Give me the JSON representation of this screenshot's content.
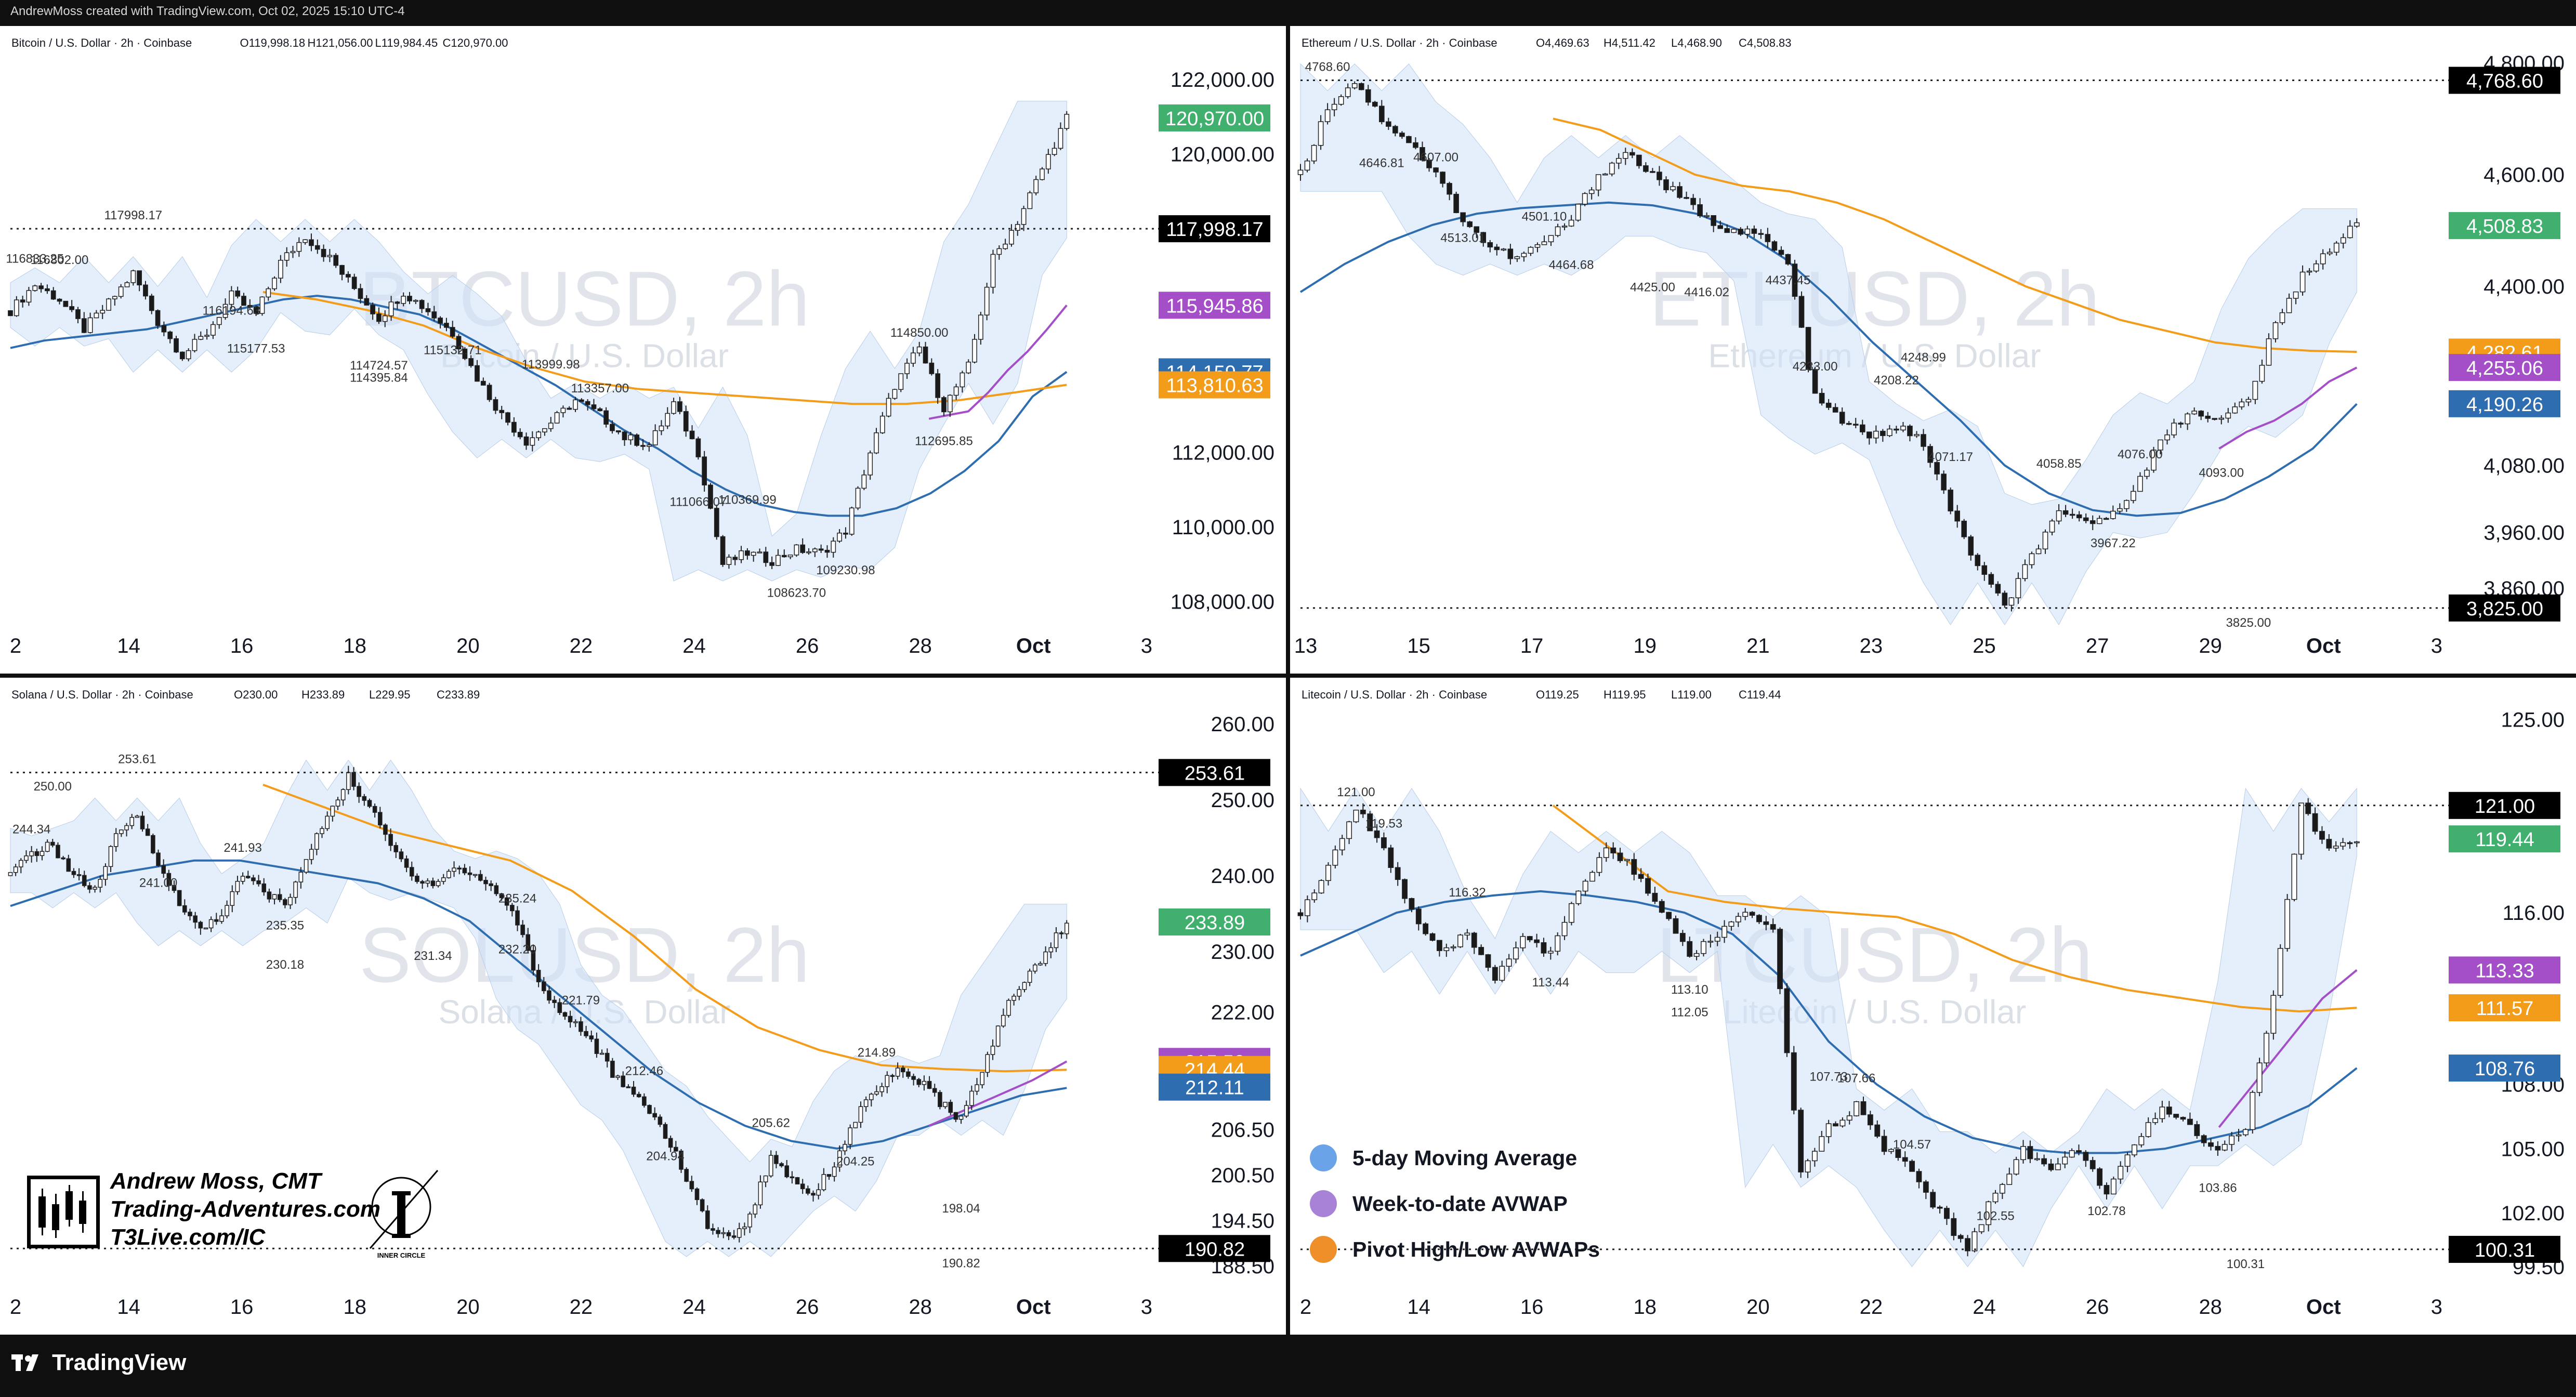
{
  "header": {
    "text": "AndrewMoss created with TradingView.com, Oct 02, 2025 15:10 UTC-4"
  },
  "footer": {
    "brand": "TradingView"
  },
  "legend": {
    "items": [
      {
        "label": "5-day Moving Average",
        "color": "#6aa3e8"
      },
      {
        "label": "Week-to-date AVWAP",
        "color": "#a882d6"
      },
      {
        "label": "Pivot High/Low AVWAPs",
        "color": "#ef8f2a"
      }
    ]
  },
  "signature": {
    "name": "Andrew Moss, CMT",
    "site": "Trading-Adventures.com",
    "site2": "T3Live.com/IC",
    "badge_text": "INNER CIRCLE"
  },
  "colors": {
    "up": "#1f2d2a",
    "down": "#1a1a1a",
    "ma5": "#2e6db0",
    "wtd": "#a44fc7",
    "pivot": "#f39c1a",
    "band": "#cfe1f7",
    "green_tag": "#41b06e"
  },
  "chart_data": [
    {
      "id": "btc",
      "type": "line",
      "symbol_line": "Bitcoin / U.S. Dollar · 2h · Coinbase",
      "ohlc": [
        "O119,998.18",
        "H121,056.00",
        "L119,984.45",
        "C120,970.00"
      ],
      "watermark": "BTCUSD, 2h",
      "watermark_sub": "Bitcoin / U.S. Dollar",
      "x_ticks": [
        "2",
        "14",
        "16",
        "18",
        "20",
        "22",
        "24",
        "26",
        "28",
        "Oct",
        "3"
      ],
      "y_ticks": [
        "122,000.00",
        "120,000.00",
        "112,000.00",
        "110,000.00",
        "108,000.00"
      ],
      "ylim": [
        107600,
        122600
      ],
      "price_path": [
        115800,
        116500,
        116100,
        115300,
        116000,
        116800,
        115500,
        114600,
        115200,
        116200,
        115700,
        117100,
        117800,
        117200,
        116400,
        115600,
        116300,
        115800,
        115200,
        114000,
        113000,
        112300,
        112800,
        113400,
        113000,
        112400,
        112200,
        113300,
        112000,
        109000,
        109300,
        109100,
        109400,
        109300,
        109900,
        112000,
        113800,
        114800,
        113200,
        114300,
        117200,
        118200,
        119600,
        120970
      ],
      "ma5": [
        114800,
        115000,
        115100,
        115200,
        115300,
        115500,
        115700,
        115900,
        116100,
        116200,
        116100,
        115900,
        115700,
        115300,
        114800,
        114300,
        113800,
        113200,
        112600,
        112100,
        111500,
        111000,
        110600,
        110400,
        110300,
        110300,
        110500,
        110900,
        111500,
        112300,
        113500,
        114159
      ],
      "wtd": [
        112900,
        113000,
        113100,
        113600,
        114200,
        114700,
        115300,
        115946
      ],
      "pivot": [
        116300,
        116100,
        115800,
        115400,
        114800,
        114300,
        113900,
        113700,
        113600,
        113500,
        113400,
        113300,
        113300,
        113400,
        113600,
        113811
      ],
      "labels": [
        "116833.25",
        "116802.00",
        "117998.17",
        "116194.63",
        "115177.53",
        "114395.84",
        "114724.57",
        "115132.71",
        "113999.98",
        "113357.00",
        "111066.07",
        "110369.99",
        "108623.70",
        "109230.98",
        "114850.00",
        "112695.85"
      ],
      "price_tags": [
        {
          "value": "120,970.00",
          "color": "#41b06e"
        },
        {
          "value": "117,998.17",
          "color": "#000000"
        },
        {
          "value": "115,945.86",
          "color": "#a44fc7"
        },
        {
          "value": "114,159.77",
          "color": "#2e6db0"
        },
        {
          "value": "113,810.63",
          "color": "#f39c1a"
        }
      ]
    },
    {
      "id": "eth",
      "type": "line",
      "symbol_line": "Ethereum / U.S. Dollar · 2h · Coinbase",
      "ohlc": [
        "O4,469.63",
        "H4,511.42",
        "L4,468.90",
        "C4,508.83"
      ],
      "watermark": "ETHUSD, 2h",
      "watermark_sub": "Ethereum / U.S. Dollar",
      "x_ticks": [
        "13",
        "15",
        "17",
        "19",
        "21",
        "23",
        "25",
        "27",
        "29",
        "Oct",
        "3"
      ],
      "y_ticks": [
        "4,800.00",
        "4,600.00",
        "4,400.00",
        "4,080.00",
        "3,960.00",
        "3,860.00"
      ],
      "ylim": [
        3810,
        4810
      ],
      "price_path": [
        4600,
        4720,
        4768,
        4700,
        4660,
        4600,
        4520,
        4470,
        4450,
        4480,
        4520,
        4600,
        4640,
        4600,
        4560,
        4520,
        4500,
        4490,
        4440,
        4200,
        4160,
        4130,
        4150,
        4120,
        4000,
        3900,
        3825,
        3920,
        3990,
        3980,
        3990,
        4060,
        4140,
        4180,
        4160,
        4200,
        4330,
        4420,
        4470,
        4509
      ],
      "ma5": [
        4390,
        4440,
        4480,
        4510,
        4530,
        4540,
        4545,
        4550,
        4545,
        4530,
        4500,
        4450,
        4380,
        4300,
        4230,
        4160,
        4080,
        4030,
        4000,
        3990,
        3995,
        4020,
        4060,
        4110,
        4190
      ],
      "wtd": [
        4110,
        4140,
        4160,
        4190,
        4230,
        4255
      ],
      "pivot": [
        4700,
        4680,
        4640,
        4600,
        4580,
        4570,
        4550,
        4520,
        4480,
        4440,
        4400,
        4370,
        4340,
        4320,
        4300,
        4290,
        4285,
        4283
      ],
      "labels": [
        "4768.60",
        "4646.81",
        "4607.00",
        "4513.01",
        "4501.10",
        "4464.68",
        "4425.00",
        "4416.02",
        "4437.45",
        "4233.00",
        "4208.22",
        "4248.99",
        "4071.17",
        "4058.85",
        "4076.00",
        "3967.22",
        "4093.00",
        "3825.00"
      ],
      "price_tags": [
        {
          "value": "4,768.60",
          "color": "#000000"
        },
        {
          "value": "4,508.83",
          "color": "#41b06e"
        },
        {
          "value": "4,282.61",
          "color": "#f39c1a"
        },
        {
          "value": "4,255.06",
          "color": "#a44fc7"
        },
        {
          "value": "4,190.26",
          "color": "#2e6db0"
        },
        {
          "value": "3,825.00",
          "color": "#000000"
        }
      ]
    },
    {
      "id": "sol",
      "type": "line",
      "symbol_line": "Solana / U.S. Dollar · 2h · Coinbase",
      "ohlc": [
        "O230.00",
        "H233.89",
        "L229.95",
        "C233.89"
      ],
      "watermark": "SOLUSD, 2h",
      "watermark_sub": "Solana / U.S. Dollar",
      "x_ticks": [
        "2",
        "14",
        "16",
        "18",
        "20",
        "22",
        "24",
        "26",
        "28",
        "Oct",
        "3"
      ],
      "y_ticks": [
        "260.00",
        "250.00",
        "240.00",
        "230.00",
        "222.00",
        "206.50",
        "200.50",
        "194.50",
        "188.50"
      ],
      "ylim": [
        187,
        262
      ],
      "price_path": [
        240,
        243,
        244,
        240,
        238,
        245,
        248,
        242,
        236,
        233,
        235,
        240,
        238,
        236,
        242,
        248,
        253,
        249,
        244,
        240,
        239,
        241,
        240,
        238,
        234,
        226,
        222,
        220,
        216,
        212,
        210,
        206,
        200,
        194,
        192,
        195,
        203,
        200,
        198,
        202,
        208,
        212,
        214,
        213,
        210,
        208,
        214,
        222,
        226,
        230,
        234
      ],
      "ma5": [
        236,
        238,
        240,
        241,
        242,
        242,
        241,
        240,
        239,
        237,
        234,
        229,
        224,
        219,
        214,
        210,
        207,
        205,
        204,
        205,
        207,
        209,
        211,
        212
      ],
      "wtd": [
        207,
        209,
        211,
        213,
        215.5
      ],
      "pivot": [
        252,
        249,
        246,
        244,
        242,
        238,
        232,
        225,
        220,
        217,
        215,
        214.5,
        214.2,
        214.4
      ],
      "labels": [
        "244.34",
        "250.00",
        "241.00",
        "253.61",
        "241.93",
        "235.35",
        "230.18",
        "231.34",
        "232.20",
        "235.24",
        "221.79",
        "212.46",
        "204.94",
        "205.62",
        "214.89",
        "204.25",
        "198.04",
        "190.82"
      ],
      "price_tags": [
        {
          "value": "253.61",
          "color": "#000000"
        },
        {
          "value": "233.89",
          "color": "#41b06e"
        },
        {
          "value": "215.50",
          "color": "#a44fc7"
        },
        {
          "value": "214.44",
          "color": "#f39c1a"
        },
        {
          "value": "212.11",
          "color": "#2e6db0"
        },
        {
          "value": "190.82",
          "color": "#000000"
        }
      ]
    },
    {
      "id": "ltc",
      "type": "line",
      "symbol_line": "Litecoin / U.S. Dollar · 2h · Coinbase",
      "ohlc": [
        "O119.25",
        "H119.95",
        "L119.00",
        "C119.44"
      ],
      "watermark": "LTCUSD, 2h",
      "watermark_sub": "Litecoin / U.S. Dollar",
      "x_ticks": [
        "2",
        "14",
        "16",
        "18",
        "20",
        "22",
        "24",
        "26",
        "28",
        "Oct",
        "3"
      ],
      "y_ticks": [
        "125.00",
        "116.00",
        "108.00",
        "105.00",
        "102.00",
        "99.50"
      ],
      "ylim": [
        99,
        125.5
      ],
      "price_path": [
        116,
        118,
        121,
        119,
        116,
        114,
        115,
        113,
        115,
        114,
        117,
        119,
        118,
        116,
        114,
        115,
        116,
        115,
        104,
        106,
        107,
        105,
        104,
        102,
        100.3,
        103,
        105,
        104,
        105,
        103,
        105,
        107,
        106,
        105,
        106,
        112,
        121,
        119,
        119.44
      ],
      "ma5": [
        114,
        115,
        116,
        116.5,
        116.8,
        117,
        116.8,
        116.5,
        116,
        115,
        113,
        110,
        108,
        106.5,
        105.5,
        105,
        104.8,
        104.8,
        105,
        105.5,
        106,
        107,
        108.76
      ],
      "wtd": [
        106,
        108,
        110,
        112,
        113.33
      ],
      "pivot": [
        121,
        119,
        117,
        116.5,
        116.2,
        116,
        115.8,
        115,
        113.8,
        113,
        112.4,
        112,
        111.6,
        111.4,
        111.57
      ],
      "labels": [
        "121.00",
        "119.53",
        "116.32",
        "113.44",
        "112.05",
        "113.10",
        "107.73",
        "107.66",
        "104.57",
        "102.55",
        "102.78",
        "103.86",
        "100.31"
      ],
      "price_tags": [
        {
          "value": "121.00",
          "color": "#000000"
        },
        {
          "value": "119.44",
          "color": "#41b06e"
        },
        {
          "value": "113.33",
          "color": "#a44fc7"
        },
        {
          "value": "111.57",
          "color": "#f39c1a"
        },
        {
          "value": "108.76",
          "color": "#2e6db0"
        },
        {
          "value": "100.31",
          "color": "#000000"
        }
      ]
    }
  ]
}
